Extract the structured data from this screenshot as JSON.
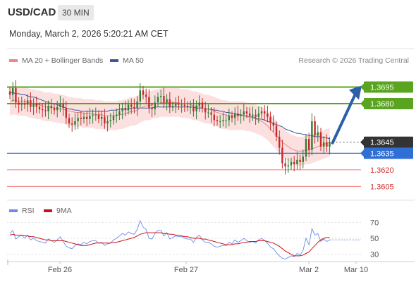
{
  "header": {
    "symbol": "USD/CAD",
    "timeframe": "30 MIN",
    "datetime": "Monday, March 2, 2026 5:20:21 AM CET"
  },
  "legend": {
    "ma20_label": "MA 20 + Bollinger Bands",
    "ma50_label": "MA 50",
    "credit": "Research © 2026 Trading Central",
    "rsi_label": "RSI",
    "ma9_label": "9MA"
  },
  "colors": {
    "bull": "#2e7d32",
    "bear": "#c62828",
    "resistance": "#5aa51f",
    "support": "#2f6fd6",
    "ma20": "#e88888",
    "ma50": "#3a5a9a",
    "band": "#fbdada",
    "arrow": "#2b5fa8",
    "rsi": "#6a8de8",
    "rsi_ma": "#cc1111"
  },
  "chart_data": [
    {
      "type": "candlestick",
      "title": "USD/CAD",
      "ylim": [
        1.3595,
        1.371
      ],
      "x_tick_labels": [
        "Feb 26",
        "Feb 27",
        "Mar 2",
        "Mar 10"
      ],
      "last_price": 1.3645,
      "levels": [
        {
          "value": 1.3695,
          "label": "1.3695",
          "kind": "resistance"
        },
        {
          "value": 1.368,
          "label": "1.3680",
          "kind": "resistance"
        },
        {
          "value": 1.3645,
          "label": "1.3645",
          "kind": "last"
        },
        {
          "value": 1.3635,
          "label": "1.3635",
          "kind": "pivot"
        },
        {
          "value": 1.362,
          "label": "1.3620",
          "kind": "support"
        },
        {
          "value": 1.3605,
          "label": "1.3605",
          "kind": "support"
        }
      ],
      "forecast_target": 1.3695,
      "closes": [
        1.3688,
        1.3694,
        1.3681,
        1.3679,
        1.368,
        1.3679,
        1.3683,
        1.3677,
        1.368,
        1.3677,
        1.3675,
        1.3674,
        1.3673,
        1.3678,
        1.3676,
        1.3674,
        1.3677,
        1.368,
        1.3676,
        1.3667,
        1.3662,
        1.3661,
        1.3664,
        1.3667,
        1.3666,
        1.3668,
        1.3666,
        1.3669,
        1.367,
        1.367,
        1.3666,
        1.3668,
        1.3662,
        1.3664,
        1.3665,
        1.3669,
        1.367,
        1.3673,
        1.3676,
        1.3674,
        1.3679,
        1.3677,
        1.3676,
        1.3682,
        1.3692,
        1.3688,
        1.3686,
        1.3676,
        1.3675,
        1.3681,
        1.3686,
        1.3687,
        1.3681,
        1.3684,
        1.3677,
        1.3678,
        1.368,
        1.3679,
        1.3679,
        1.3678,
        1.3677,
        1.3677,
        1.3673,
        1.3678,
        1.3681,
        1.3676,
        1.3672,
        1.3672,
        1.367,
        1.3665,
        1.3664,
        1.3664,
        1.3665,
        1.3665,
        1.3669,
        1.3667,
        1.3671,
        1.3669,
        1.367,
        1.3673,
        1.3671,
        1.3669,
        1.367,
        1.3668,
        1.3671,
        1.3673,
        1.3671,
        1.3668,
        1.3663,
        1.366,
        1.365,
        1.364,
        1.3626,
        1.3623,
        1.3624,
        1.3627,
        1.3625,
        1.3629,
        1.3627,
        1.3632,
        1.3648,
        1.3638,
        1.3664,
        1.3651,
        1.3654,
        1.3641,
        1.3645,
        1.3641,
        1.3645
      ],
      "ma20": [
        1.3682,
        1.3683,
        1.3683,
        1.3682,
        1.3682,
        1.3682,
        1.3681,
        1.368,
        1.368,
        1.3679,
        1.3679,
        1.3678,
        1.3677,
        1.3677,
        1.3677,
        1.3676,
        1.3676,
        1.3675,
        1.3675,
        1.3674,
        1.3673,
        1.3673,
        1.3672,
        1.3672,
        1.3672,
        1.3671,
        1.3671,
        1.3671,
        1.3671,
        1.367,
        1.367,
        1.367,
        1.3669,
        1.3669,
        1.3669,
        1.3669,
        1.3669,
        1.367,
        1.367,
        1.3671,
        1.3672,
        1.3673,
        1.3673,
        1.3674,
        1.3676,
        1.3677,
        1.3678,
        1.3678,
        1.3679,
        1.368,
        1.368,
        1.3681,
        1.3681,
        1.3681,
        1.3681,
        1.3681,
        1.3681,
        1.3681,
        1.368,
        1.368,
        1.368,
        1.3679,
        1.3678,
        1.3678,
        1.3677,
        1.3676,
        1.3675,
        1.3675,
        1.3674,
        1.3673,
        1.3672,
        1.3671,
        1.367,
        1.367,
        1.3669,
        1.3669,
        1.3669,
        1.3669,
        1.3669,
        1.3669,
        1.3668,
        1.3668,
        1.3667,
        1.3666,
        1.3665,
        1.3664,
        1.3662,
        1.366,
        1.3657,
        1.3654,
        1.3651,
        1.3648,
        1.3645,
        1.3643,
        1.3641,
        1.3639,
        1.3638,
        1.3637,
        1.3637,
        1.3637,
        1.3638,
        1.3638,
        1.3639,
        1.364,
        1.3641,
        1.3642,
        1.3643,
        1.3644,
        1.3645
      ],
      "ma50": [
        1.369,
        1.369,
        1.3689,
        1.3689,
        1.3688,
        1.3688,
        1.3687,
        1.3686,
        1.3686,
        1.3685,
        1.3684,
        1.3683,
        1.3682,
        1.3681,
        1.368,
        1.368,
        1.3679,
        1.3678,
        1.3677,
        1.3676,
        1.3675,
        1.3675,
        1.3674,
        1.3674,
        1.3673,
        1.3673,
        1.3673,
        1.3673,
        1.3673,
        1.3673,
        1.3673,
        1.3673,
        1.3673,
        1.3673,
        1.3674,
        1.3674,
        1.3674,
        1.3675,
        1.3675,
        1.3675,
        1.3675,
        1.3676,
        1.3676,
        1.3676,
        1.3676,
        1.3676,
        1.3676,
        1.3676,
        1.3676,
        1.3677,
        1.3677,
        1.3677,
        1.3677,
        1.3677,
        1.3677,
        1.3677,
        1.3677,
        1.3677,
        1.3677,
        1.3677,
        1.3677,
        1.3677,
        1.3677,
        1.3676,
        1.3676,
        1.3676,
        1.3675,
        1.3675,
        1.3675,
        1.3674,
        1.3674,
        1.3673,
        1.3673,
        1.3672,
        1.3672,
        1.3671,
        1.3671,
        1.367,
        1.367,
        1.3669,
        1.3669,
        1.3668,
        1.3668,
        1.3667,
        1.3666,
        1.3666,
        1.3665,
        1.3664,
        1.3663,
        1.3662,
        1.3661,
        1.366,
        1.3659,
        1.3657,
        1.3656,
        1.3655,
        1.3654,
        1.3653,
        1.3653,
        1.3652,
        1.3652,
        1.3651,
        1.3651,
        1.365,
        1.365,
        1.365,
        1.3649,
        1.3649,
        1.3648
      ]
    },
    {
      "type": "line",
      "title": "RSI",
      "ylim": [
        20,
        80
      ],
      "y_ticks": [
        70,
        50,
        30
      ],
      "series": [
        {
          "name": "RSI",
          "values": [
            56,
            60,
            49,
            52,
            54,
            50,
            54,
            48,
            50,
            47,
            46,
            45,
            44,
            49,
            47,
            45,
            48,
            52,
            46,
            40,
            38,
            37,
            41,
            43,
            42,
            45,
            43,
            46,
            47,
            47,
            44,
            45,
            41,
            43,
            44,
            48,
            50,
            53,
            56,
            54,
            58,
            56,
            55,
            61,
            72,
            64,
            61,
            50,
            49,
            56,
            60,
            60,
            53,
            57,
            49,
            51,
            53,
            52,
            52,
            50,
            49,
            49,
            45,
            51,
            54,
            48,
            45,
            45,
            43,
            40,
            39,
            40,
            41,
            41,
            45,
            43,
            48,
            45,
            47,
            50,
            47,
            45,
            46,
            44,
            48,
            50,
            47,
            44,
            39,
            37,
            32,
            28,
            25,
            24,
            26,
            28,
            27,
            31,
            29,
            35,
            50,
            42,
            62,
            54,
            56,
            46,
            49,
            46,
            48
          ]
        },
        {
          "name": "9MA",
          "values": [
            54,
            55,
            54,
            54,
            54,
            53,
            53,
            52,
            52,
            51,
            50,
            49,
            48,
            48,
            47,
            47,
            47,
            47,
            47,
            46,
            45,
            44,
            43,
            42,
            41,
            41,
            41,
            42,
            43,
            44,
            44,
            44,
            44,
            44,
            44,
            45,
            45,
            46,
            47,
            48,
            49,
            50,
            51,
            53,
            55,
            56,
            57,
            57,
            57,
            57,
            57,
            57,
            56,
            56,
            55,
            55,
            54,
            54,
            53,
            52,
            52,
            51,
            50,
            50,
            50,
            49,
            49,
            48,
            47,
            46,
            45,
            44,
            43,
            42,
            42,
            42,
            43,
            43,
            44,
            45,
            45,
            46,
            46,
            46,
            47,
            47,
            47,
            46,
            45,
            44,
            42,
            40,
            37,
            34,
            32,
            30,
            28,
            28,
            28,
            29,
            31,
            33,
            37,
            41,
            45,
            48,
            50,
            51,
            51
          ]
        }
      ]
    }
  ]
}
